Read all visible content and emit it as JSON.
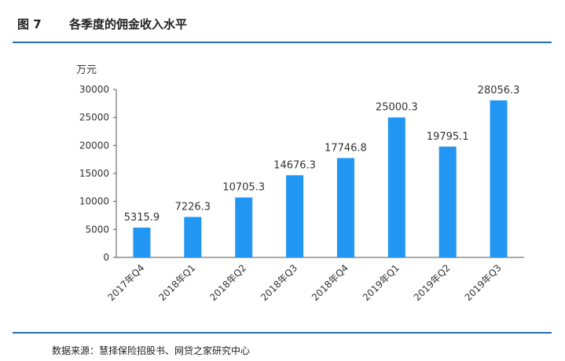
{
  "figure": {
    "number": "图 7",
    "title": "各季度的佣金收入水平",
    "source": "数据来源：慧择保险招股书、网贷之家研究中心"
  },
  "chart_data": {
    "type": "bar",
    "categories": [
      "2017年Q4",
      "2018年Q1",
      "2018年Q2",
      "2018年Q3",
      "2018年Q4",
      "2019年Q1",
      "2019年Q2",
      "2019年Q3"
    ],
    "values": [
      5315.9,
      7226.3,
      10705.3,
      14676.3,
      17746.8,
      25000.3,
      19795.1,
      28056.3
    ],
    "value_labels": [
      "5315.9",
      "7226.3",
      "10705.3",
      "14676.3",
      "17746.8",
      "25000.3",
      "19795.1",
      "28056.3"
    ],
    "yunit": "万元",
    "yticks": [
      "0",
      "5000",
      "10000",
      "15000",
      "20000",
      "25000",
      "30000"
    ],
    "ylim": [
      0,
      30000
    ],
    "bar_color": "#2196f3",
    "grid": false,
    "legend": "none"
  }
}
